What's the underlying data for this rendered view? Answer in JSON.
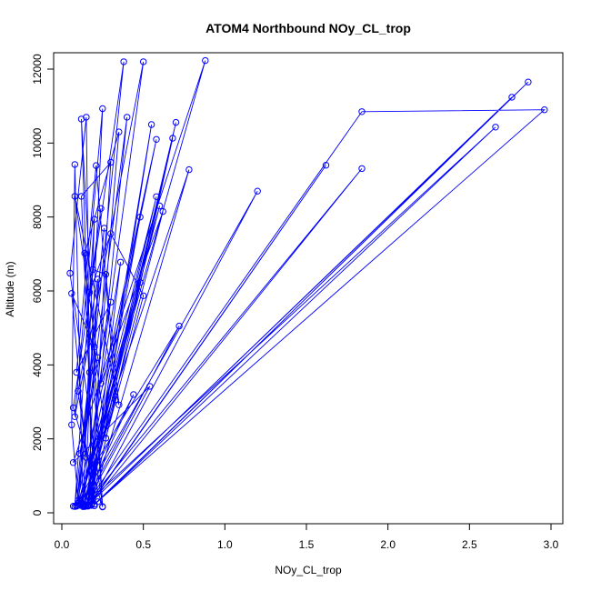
{
  "chart_data": {
    "type": "scatter",
    "title": "ATOM4 Northbound NOy_CL_trop",
    "xlabel": "NOy_CL_trop",
    "ylabel": "Altitude (m)",
    "xlim": [
      0.0,
      3.0
    ],
    "ylim": [
      0,
      12000
    ],
    "x_ticks": [
      0.0,
      0.5,
      1.0,
      1.5,
      2.0,
      2.5,
      3.0
    ],
    "x_tick_labels": [
      "0.0",
      "0.5",
      "1.0",
      "1.5",
      "2.0",
      "2.5",
      "3.0"
    ],
    "y_ticks": [
      0,
      2000,
      4000,
      6000,
      8000,
      10000,
      12000
    ],
    "y_tick_labels": [
      "0",
      "2000",
      "4000",
      "6000",
      "8000",
      "10000",
      "12000"
    ],
    "grid": false,
    "legend": "none",
    "style": "points-and-lines",
    "color": "#0000ff",
    "series": [
      {
        "points": [
          [
            0.07,
            180
          ],
          [
            0.1,
            330
          ],
          [
            0.06,
            2380
          ],
          [
            0.08,
            9420
          ],
          [
            0.13,
            210
          ],
          [
            0.2,
            7940
          ],
          [
            0.08,
            170
          ],
          [
            0.17,
            3800
          ],
          [
            0.12,
            10650
          ],
          [
            0.25,
            170
          ],
          [
            0.05,
            6480
          ],
          [
            0.15,
            10700
          ],
          [
            0.18,
            200
          ],
          [
            0.3,
            9480
          ],
          [
            0.12,
            8560
          ],
          [
            0.2,
            190
          ],
          [
            0.1,
            3290
          ],
          [
            0.22,
            6320
          ],
          [
            0.16,
            220
          ],
          [
            0.35,
            10300
          ],
          [
            0.14,
            7020
          ],
          [
            0.25,
            160
          ],
          [
            0.07,
            2840
          ],
          [
            0.38,
            12200
          ],
          [
            0.1,
            200
          ],
          [
            0.26,
            7700
          ],
          [
            0.09,
            180
          ],
          [
            0.44,
            3200
          ],
          [
            0.13,
            230
          ],
          [
            0.5,
            12200
          ],
          [
            0.08,
            2600
          ],
          [
            0.25,
            10930
          ],
          [
            0.14,
            170
          ],
          [
            0.58,
            8550
          ],
          [
            0.11,
            210
          ],
          [
            0.48,
            6230
          ],
          [
            0.15,
            200
          ],
          [
            0.62,
            8150
          ],
          [
            0.24,
            3500
          ],
          [
            0.36,
            6780
          ],
          [
            0.18,
            230
          ],
          [
            0.55,
            10500
          ],
          [
            0.16,
            180
          ],
          [
            0.48,
            8000
          ],
          [
            0.12,
            260
          ],
          [
            0.58,
            10100
          ],
          [
            0.09,
            200
          ],
          [
            0.4,
            10700
          ],
          [
            0.16,
            190
          ],
          [
            0.7,
            10560
          ],
          [
            0.2,
            1300
          ],
          [
            0.72,
            5050
          ],
          [
            0.13,
            170
          ],
          [
            0.6,
            8300
          ],
          [
            0.1,
            260
          ],
          [
            0.78,
            9280
          ],
          [
            0.18,
            210
          ],
          [
            0.68,
            10130
          ],
          [
            0.14,
            180
          ],
          [
            0.54,
            3420
          ],
          [
            0.07,
            1360
          ],
          [
            0.88,
            12230
          ],
          [
            0.11,
            220
          ],
          [
            1.2,
            8700
          ],
          [
            0.19,
            350
          ],
          [
            1.62,
            9400
          ],
          [
            0.17,
            200
          ],
          [
            1.84,
            9310
          ],
          [
            0.14,
            190
          ],
          [
            1.84,
            10850
          ],
          [
            2.96,
            10900
          ],
          [
            0.2,
            230
          ],
          [
            2.86,
            11650
          ],
          [
            0.16,
            200
          ],
          [
            2.76,
            11240
          ],
          [
            0.22,
            300
          ],
          [
            2.66,
            10430
          ],
          [
            0.13,
            170
          ],
          [
            0.33,
            3060
          ],
          [
            0.21,
            9390
          ],
          [
            0.09,
            3800
          ],
          [
            0.3,
            5700
          ],
          [
            0.11,
            1600
          ],
          [
            0.22,
            4200
          ],
          [
            0.08,
            8560
          ],
          [
            0.35,
            2920
          ],
          [
            0.27,
            6450
          ],
          [
            0.19,
            6580
          ],
          [
            0.24,
            8230
          ],
          [
            0.17,
            5960
          ],
          [
            0.3,
            7550
          ],
          [
            0.5,
            5870
          ],
          [
            0.27,
            2020
          ],
          [
            0.2,
            4480
          ],
          [
            0.06,
            5930
          ],
          [
            0.15,
            1500
          ]
        ]
      }
    ]
  }
}
